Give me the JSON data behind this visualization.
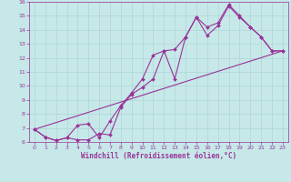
{
  "xlabel": "Windchill (Refroidissement éolien,°C)",
  "xlim": [
    -0.5,
    23.5
  ],
  "ylim": [
    6,
    16
  ],
  "xticks": [
    0,
    1,
    2,
    3,
    4,
    5,
    6,
    7,
    8,
    9,
    10,
    11,
    12,
    13,
    14,
    15,
    16,
    17,
    18,
    19,
    20,
    21,
    22,
    23
  ],
  "yticks": [
    6,
    7,
    8,
    9,
    10,
    11,
    12,
    13,
    14,
    15,
    16
  ],
  "bg_color": "#c6e8e8",
  "line_color": "#993399",
  "grid_color": "#b0d4d4",
  "line1_x": [
    0,
    1,
    2,
    3,
    4,
    5,
    6,
    7,
    8,
    9,
    10,
    11,
    12,
    13,
    14,
    15,
    16,
    17,
    18,
    19,
    20,
    21,
    22,
    23
  ],
  "line1_y": [
    6.9,
    6.35,
    6.1,
    6.3,
    7.2,
    7.3,
    6.3,
    7.5,
    8.6,
    9.5,
    10.5,
    12.2,
    12.5,
    10.5,
    13.5,
    14.9,
    14.2,
    14.5,
    15.8,
    15.0,
    14.2,
    13.5,
    12.5,
    12.5
  ],
  "line2_x": [
    0,
    1,
    2,
    3,
    4,
    5,
    6,
    7,
    8,
    9,
    10,
    11,
    12,
    13,
    14,
    15,
    16,
    17,
    18,
    19,
    20,
    21,
    22,
    23
  ],
  "line2_y": [
    6.9,
    6.35,
    6.1,
    6.3,
    6.15,
    6.15,
    6.6,
    6.5,
    8.5,
    9.4,
    9.9,
    10.5,
    12.5,
    12.6,
    13.5,
    14.9,
    13.6,
    14.3,
    15.7,
    14.9,
    14.2,
    13.5,
    12.5,
    12.5
  ],
  "line3_x": [
    0,
    23
  ],
  "line3_y": [
    6.9,
    12.5
  ]
}
